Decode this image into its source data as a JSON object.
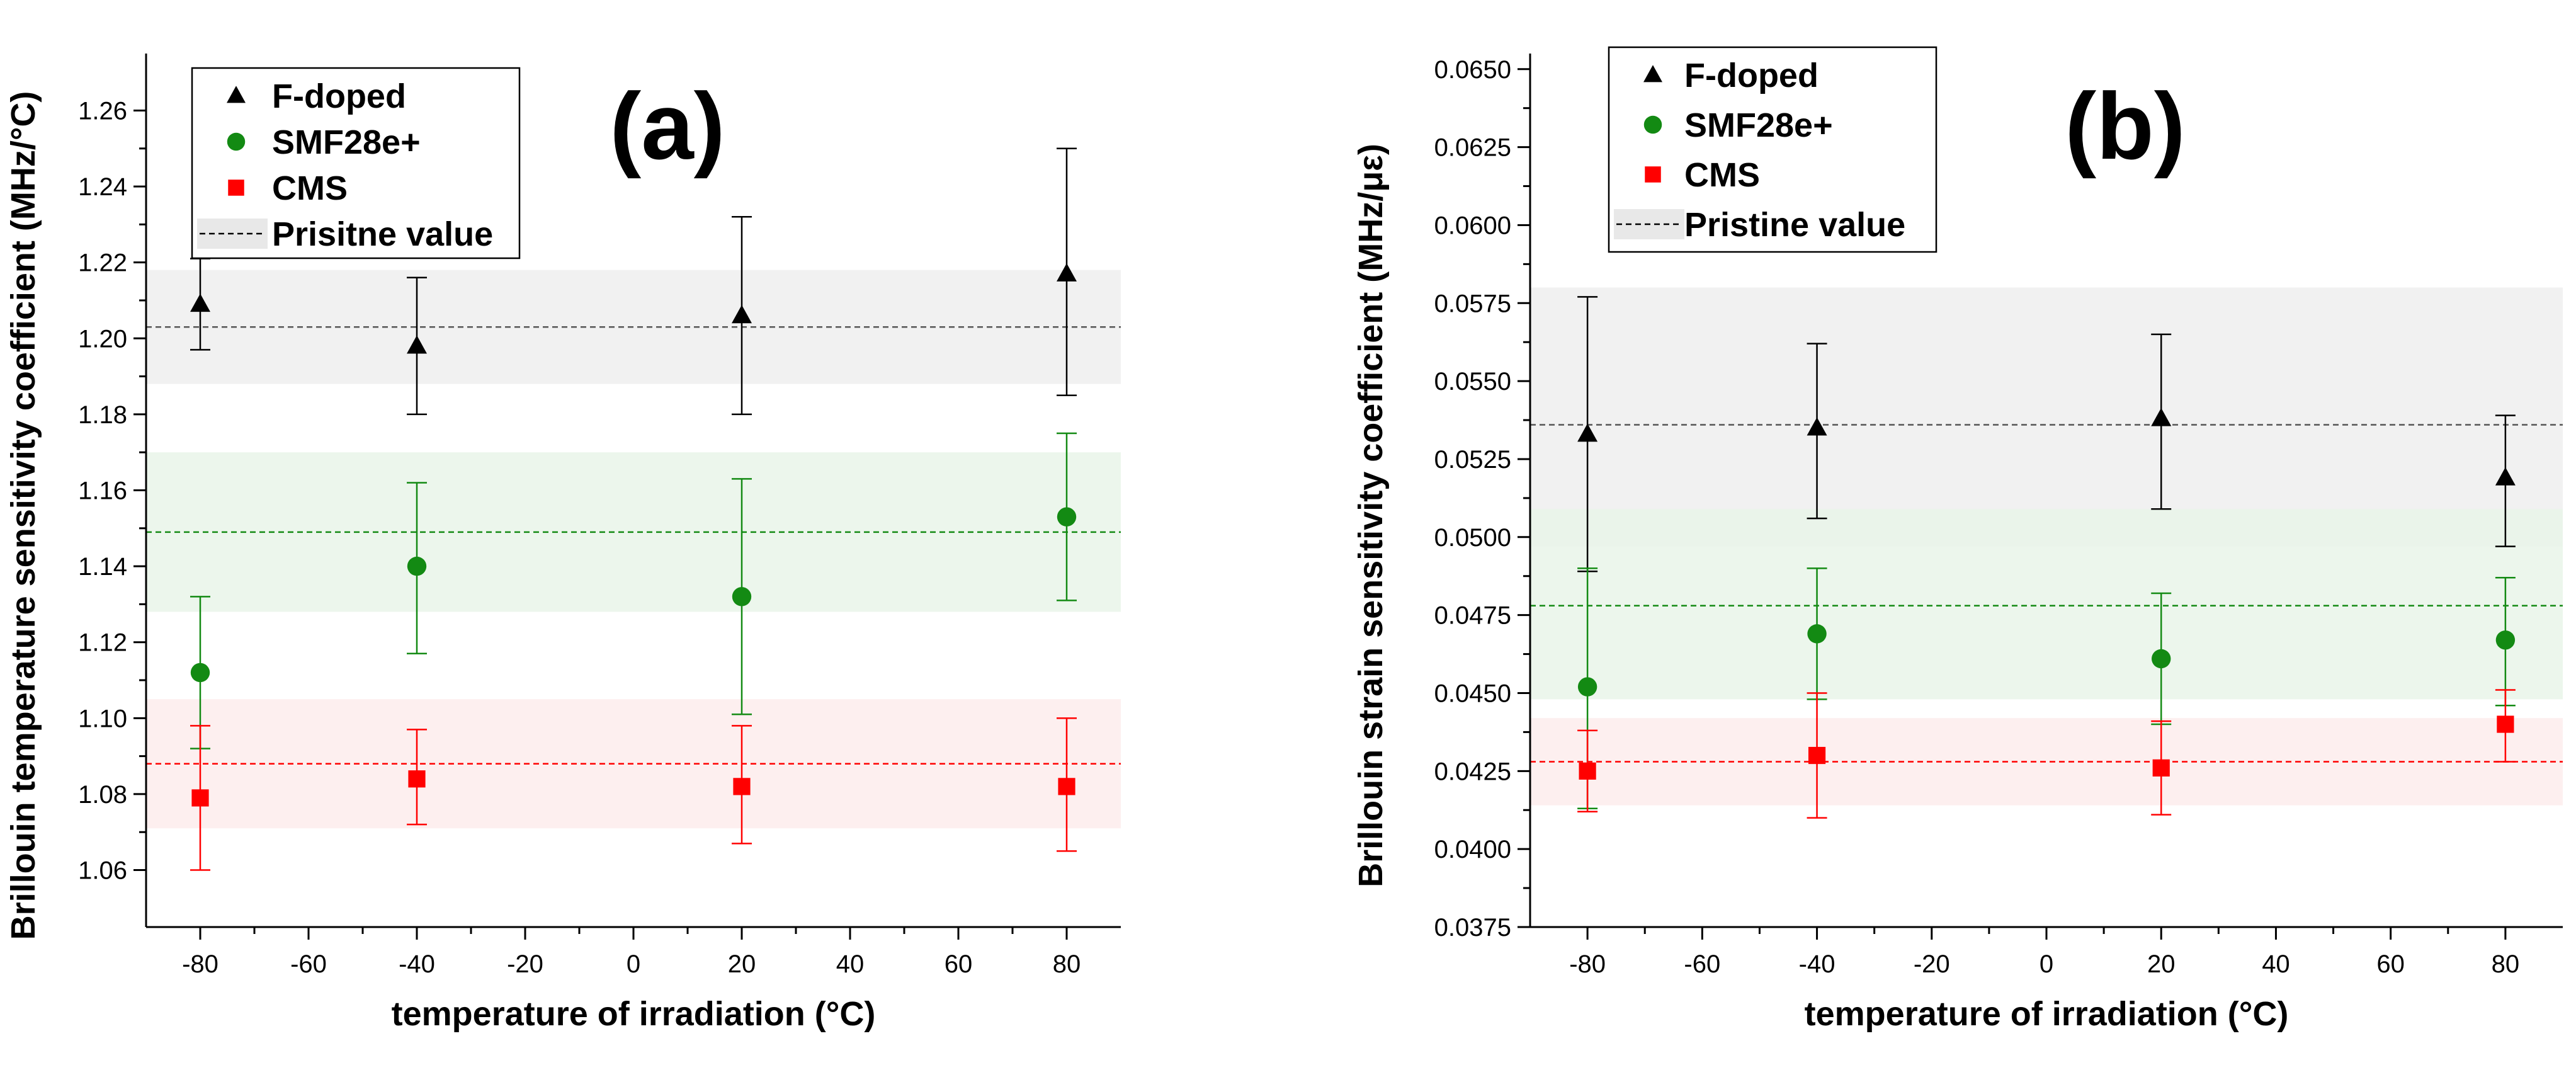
{
  "chart_data": [
    {
      "type": "scatter",
      "panel_label": "(a)",
      "xlabel": "temperature of irradiation (°C)",
      "ylabel": "Brillouin temperature sensitivity coefficient (MHz/°C)",
      "xlim": [
        -90,
        90
      ],
      "ylim": [
        1.045,
        1.275
      ],
      "xticks": [
        -80,
        -60,
        -40,
        -20,
        0,
        20,
        40,
        60,
        80
      ],
      "yticks": [
        1.06,
        1.08,
        1.1,
        1.12,
        1.14,
        1.16,
        1.18,
        1.2,
        1.22,
        1.24,
        1.26
      ],
      "ytick_decimals": 2,
      "legend_position": "top-left",
      "series": [
        {
          "name": "F-doped",
          "marker": "triangle",
          "color": "#000000",
          "x": [
            -80,
            -40,
            20,
            80
          ],
          "y": [
            1.209,
            1.198,
            1.206,
            1.217
          ],
          "err_low": [
            1.197,
            1.18,
            1.18,
            1.185
          ],
          "err_high": [
            1.221,
            1.216,
            1.232,
            1.25
          ]
        },
        {
          "name": "SMF28e+",
          "marker": "circle",
          "color": "#138a13",
          "x": [
            -80,
            -40,
            20,
            80
          ],
          "y": [
            1.112,
            1.14,
            1.132,
            1.153
          ],
          "err_low": [
            1.092,
            1.117,
            1.101,
            1.131
          ],
          "err_high": [
            1.132,
            1.162,
            1.163,
            1.175
          ]
        },
        {
          "name": "CMS",
          "marker": "square",
          "color": "#ff0000",
          "x": [
            -80,
            -40,
            20,
            80
          ],
          "y": [
            1.079,
            1.084,
            1.082,
            1.082
          ],
          "err_low": [
            1.06,
            1.072,
            1.067,
            1.065
          ],
          "err_high": [
            1.098,
            1.097,
            1.098,
            1.1
          ]
        }
      ],
      "pristine": [
        {
          "series": "F-doped",
          "value": 1.203,
          "band": [
            1.188,
            1.218
          ],
          "line_color": "#555555",
          "band_color": "#eeeeee"
        },
        {
          "series": "SMF28e+",
          "value": 1.149,
          "band": [
            1.128,
            1.17
          ],
          "line_color": "#138a13",
          "band_color": "#e9f4e9"
        },
        {
          "series": "CMS",
          "value": 1.088,
          "band": [
            1.071,
            1.105
          ],
          "line_color": "#ff0000",
          "band_color": "#fdecec"
        }
      ],
      "legend_entries": [
        "F-doped",
        "SMF28e+",
        "CMS",
        "Prisitne value"
      ]
    },
    {
      "type": "scatter",
      "panel_label": "(b)",
      "xlabel": "temperature of irradiation (°C)",
      "ylabel": "Brillouin strain sensitivity coefficient (MHz/με)",
      "xlim": [
        -90,
        90
      ],
      "ylim": [
        0.0375,
        0.0655
      ],
      "xticks": [
        -80,
        -60,
        -40,
        -20,
        0,
        20,
        40,
        60,
        80
      ],
      "yticks": [
        0.0375,
        0.04,
        0.0425,
        0.045,
        0.0475,
        0.05,
        0.0525,
        0.055,
        0.0575,
        0.06,
        0.0625,
        0.065
      ],
      "ytick_decimals": 4,
      "legend_position": "top-left",
      "series": [
        {
          "name": "F-doped",
          "marker": "triangle",
          "color": "#000000",
          "x": [
            -80,
            -40,
            20,
            80
          ],
          "y": [
            0.0533,
            0.0535,
            0.0538,
            0.0519
          ],
          "err_low": [
            0.0489,
            0.0506,
            0.0509,
            0.0497
          ],
          "err_high": [
            0.0577,
            0.0562,
            0.0565,
            0.0539
          ]
        },
        {
          "name": "SMF28e+",
          "marker": "circle",
          "color": "#138a13",
          "x": [
            -80,
            -40,
            20,
            80
          ],
          "y": [
            0.0452,
            0.0469,
            0.0461,
            0.0467
          ],
          "err_low": [
            0.0413,
            0.0448,
            0.044,
            0.0446
          ],
          "err_high": [
            0.049,
            0.049,
            0.0482,
            0.0487
          ]
        },
        {
          "name": "CMS",
          "marker": "square",
          "color": "#ff0000",
          "x": [
            -80,
            -40,
            20,
            80
          ],
          "y": [
            0.0425,
            0.043,
            0.0426,
            0.044
          ],
          "err_low": [
            0.0412,
            0.041,
            0.0411,
            0.0428
          ],
          "err_high": [
            0.0438,
            0.045,
            0.0441,
            0.0451
          ]
        }
      ],
      "pristine": [
        {
          "series": "F-doped",
          "value": 0.0536,
          "band": [
            0.0497,
            0.058
          ],
          "line_color": "#555555",
          "band_color": "#eeeeee"
        },
        {
          "series": "SMF28e+",
          "value": 0.0478,
          "band": [
            0.0448,
            0.0509
          ],
          "line_color": "#138a13",
          "band_color": "#e9f4e9"
        },
        {
          "series": "CMS",
          "value": 0.0428,
          "band": [
            0.0414,
            0.0442
          ],
          "line_color": "#ff0000",
          "band_color": "#fdecec"
        }
      ],
      "legend_entries": [
        "F-doped",
        "SMF28e+",
        "CMS",
        "Pristine value"
      ]
    }
  ]
}
